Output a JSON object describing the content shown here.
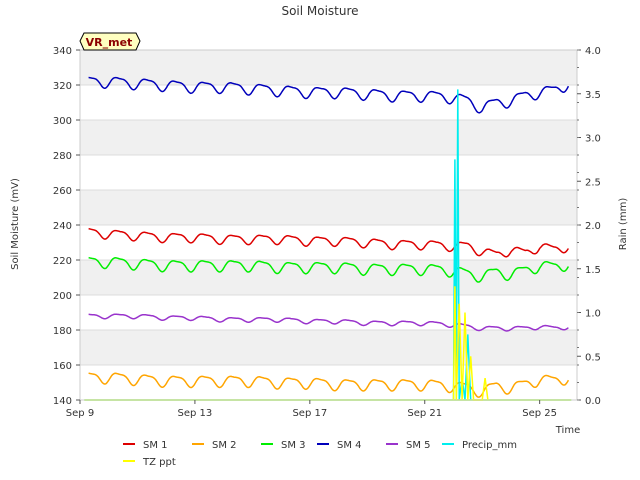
{
  "chart_data": {
    "type": "line",
    "title": "Soil Moisture",
    "badge": "VR_met",
    "xlabel": "Time",
    "ylabel": "Soil Moisture (mV)",
    "y2label": "Rain (mm)",
    "xlim": [
      9.0,
      26.3
    ],
    "ylim": [
      140,
      340
    ],
    "y2lim": [
      0.0,
      4.0
    ],
    "xticks": [
      {
        "value": 9,
        "label": "Sep 9"
      },
      {
        "value": 13,
        "label": "Sep 13"
      },
      {
        "value": 17,
        "label": "Sep 17"
      },
      {
        "value": 21,
        "label": "Sep 21"
      },
      {
        "value": 25,
        "label": "Sep 25"
      }
    ],
    "yticks": [
      140,
      160,
      180,
      200,
      220,
      240,
      260,
      280,
      300,
      320,
      340
    ],
    "y2ticks": [
      "0.0",
      "0.5",
      "1.0",
      "1.5",
      "2.0",
      "2.5",
      "3.0",
      "3.5",
      "4.0"
    ],
    "colors": {
      "SM 1": "#dd0000",
      "SM 2": "#ffa500",
      "SM 3": "#00ee00",
      "SM 4": "#0000bb",
      "SM 5": "#9933cc",
      "Precip_mm": "#00eeee",
      "TZ ppt": "#ffff00"
    },
    "series": [
      {
        "name": "SM 1",
        "axis": "left",
        "x": [
          9.3,
          10.0,
          11.0,
          12.0,
          13.0,
          14.0,
          15.0,
          16.0,
          17.0,
          18.0,
          19.0,
          20.0,
          21.0,
          22.0,
          22.5,
          23.0,
          23.5,
          24.0,
          24.5,
          25.0,
          25.5,
          26.0
        ],
        "values": [
          236,
          235,
          234,
          233,
          233,
          232,
          232,
          232,
          231,
          231,
          230,
          229,
          229,
          228,
          228,
          225,
          223,
          226,
          224,
          228,
          226,
          228
        ],
        "amp": 2.5
      },
      {
        "name": "SM 2",
        "axis": "left",
        "x": [
          9.3,
          10.0,
          11.0,
          12.0,
          13.0,
          14.0,
          15.0,
          16.0,
          17.0,
          18.0,
          19.0,
          20.0,
          21.0,
          22.0,
          22.5,
          23.0,
          23.5,
          24.0,
          24.5,
          25.0,
          25.5,
          26.0
        ],
        "values": [
          153,
          153,
          152,
          151,
          151,
          151,
          151,
          150,
          150,
          149,
          149,
          149,
          149,
          148,
          147,
          145,
          148,
          147,
          149,
          152,
          151,
          153
        ],
        "amp": 3.0
      },
      {
        "name": "SM 3",
        "axis": "left",
        "x": [
          9.3,
          10.0,
          11.0,
          12.0,
          13.0,
          14.0,
          15.0,
          16.0,
          17.0,
          18.0,
          19.0,
          20.0,
          21.0,
          22.0,
          22.5,
          23.0,
          23.5,
          24.0,
          24.5,
          25.0,
          25.5,
          26.0
        ],
        "values": [
          219,
          219,
          218,
          217,
          217,
          217,
          217,
          216,
          216,
          216,
          215,
          215,
          215,
          214,
          212,
          211,
          213,
          212,
          214,
          217,
          216,
          218
        ],
        "amp": 3.0
      },
      {
        "name": "SM 4",
        "axis": "left",
        "x": [
          9.3,
          10.0,
          11.0,
          12.0,
          13.0,
          14.0,
          15.0,
          16.0,
          17.0,
          18.0,
          19.0,
          20.0,
          21.0,
          22.0,
          22.5,
          23.0,
          23.5,
          24.0,
          24.5,
          25.0,
          25.5,
          26.0
        ],
        "values": [
          322,
          322,
          321,
          320,
          319,
          319,
          318,
          317,
          316,
          316,
          315,
          314,
          314,
          313,
          311,
          307,
          310,
          311,
          314,
          316,
          317,
          321
        ],
        "amp": 3.0
      },
      {
        "name": "SM 5",
        "axis": "left",
        "x": [
          9.3,
          10.0,
          11.0,
          12.0,
          13.0,
          14.0,
          15.0,
          16.0,
          17.0,
          18.0,
          19.0,
          20.0,
          21.0,
          22.0,
          22.5,
          23.0,
          23.5,
          24.0,
          24.5,
          25.0,
          25.5,
          26.0
        ],
        "values": [
          188,
          188,
          188,
          187,
          187,
          186,
          186,
          186,
          185,
          185,
          184,
          184,
          184,
          183,
          182,
          181,
          181,
          181,
          181,
          182,
          181,
          182
        ],
        "amp": 1.2
      },
      {
        "name": "Precip_mm",
        "axis": "right",
        "x": [
          22.0,
          22.05,
          22.1,
          22.15,
          22.2,
          22.3,
          22.4,
          22.5,
          22.6
        ],
        "values": [
          0.0,
          2.75,
          0.0,
          3.55,
          0.0,
          0.25,
          0.0,
          0.75,
          0.0
        ]
      },
      {
        "name": "TZ ppt",
        "axis": "right",
        "x": [
          22.0,
          22.05,
          22.1,
          22.2,
          22.3,
          22.4,
          22.5,
          22.6,
          22.7,
          23.0,
          23.1,
          23.2
        ],
        "values": [
          0.0,
          1.3,
          0.0,
          1.1,
          0.0,
          1.0,
          0.0,
          0.5,
          0.0,
          0.0,
          0.25,
          0.0
        ]
      }
    ],
    "legend": {
      "placement": "bottom",
      "entries": [
        "SM 1",
        "SM 2",
        "SM 3",
        "SM 4",
        "SM 5",
        "Precip_mm",
        "TZ ppt"
      ]
    },
    "grid": "horizontal-bands"
  }
}
